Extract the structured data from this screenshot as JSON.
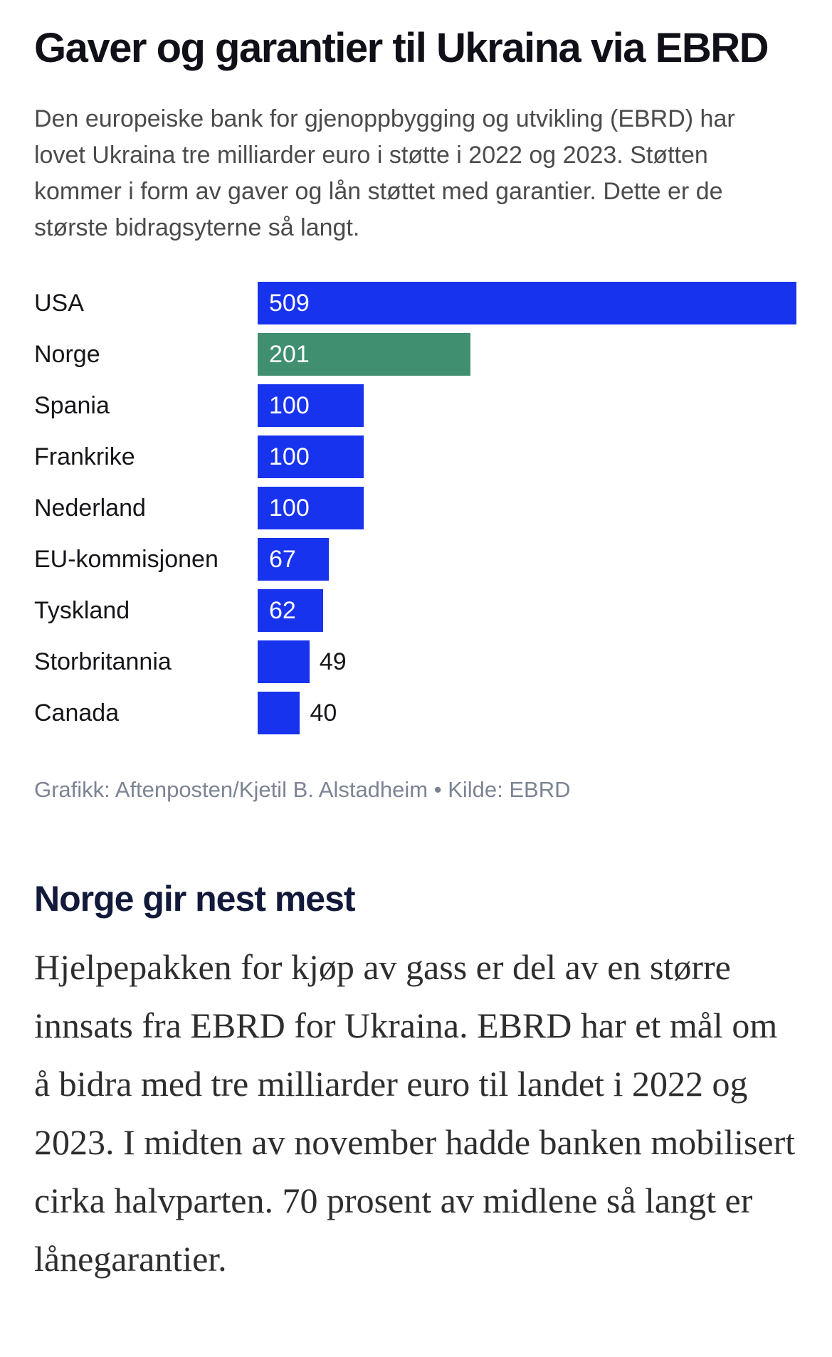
{
  "article": {
    "title": "Gaver og garantier til Ukraina via EBRD",
    "intro": "Den europeiske bank for gjenoppbygging og utvikling (EBRD) har lovet Ukraina tre milliarder euro i støtte i 2022 og 2023. Støtten kommer i form av gaver og lån støttet med garantier. Dette er de største bidragsyterne så langt.",
    "credit": "Grafikk: Aftenposten/Kjetil B. Alstadheim • Kilde: EBRD",
    "subheading": "Norge gir nest mest",
    "body": "Hjelpepakken for kjøp av gass er del av en større innsats fra EBRD for Ukraina. EBRD har et mål om å bidra med tre milliarder euro til landet i 2022 og 2023. I midten av november hadde banken mobilisert cirka halvparten. 70 prosent av midlene så langt er lånegarantier."
  },
  "chart_data": {
    "type": "bar",
    "orientation": "horizontal",
    "title": "Gaver og garantier til Ukraina via EBRD",
    "categories": [
      "USA",
      "Norge",
      "Spania",
      "Frankrike",
      "Nederland",
      "EU-kommisjonen",
      "Tyskland",
      "Storbritannia",
      "Canada"
    ],
    "values": [
      509,
      201,
      100,
      100,
      100,
      67,
      62,
      49,
      40
    ],
    "value_labels": [
      "509",
      "201",
      "100",
      "100",
      "100",
      "67",
      "62",
      "49",
      "40"
    ],
    "xlim": [
      0,
      509
    ],
    "grid": false,
    "axes_hidden": true,
    "legend": "none",
    "colors": {
      "default": "#1833ee",
      "highlight": "#3f8f70"
    },
    "highlight_category": "Norge",
    "value_label_inside_threshold": 55
  }
}
